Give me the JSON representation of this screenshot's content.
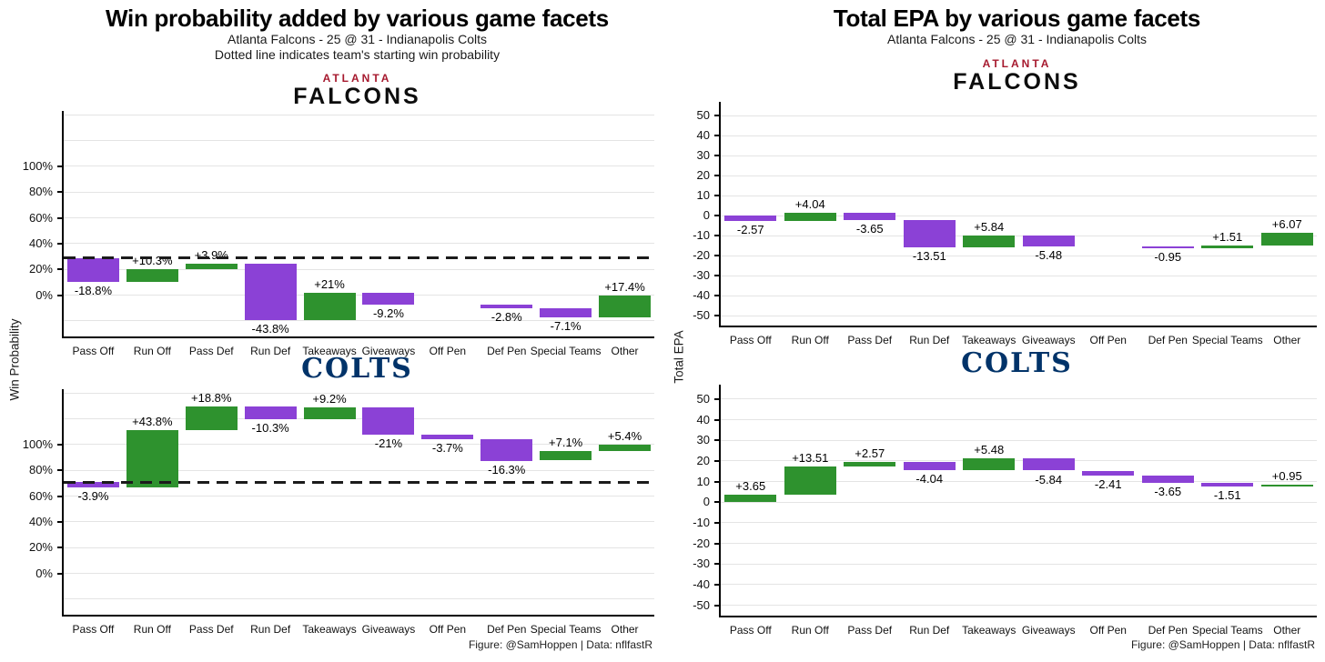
{
  "colors": {
    "positive": "#2e922e",
    "negative": "#8b41d6",
    "baseline_dash": "#1b1b1b",
    "falcons_red": "#a6192e",
    "falcons_black": "#0d0d0d",
    "colts_navy": "#013369",
    "gridline": "#e4e4e4"
  },
  "teams": {
    "falcons": {
      "city": "ATLANTA",
      "name": "FALCONS"
    },
    "colts": {
      "name": "COLTS"
    }
  },
  "left_panel": {
    "title": "Win probability added by various game facets",
    "subtitle1": "Atlanta Falcons - 25 @ 31 - Indianapolis Colts",
    "subtitle2": "Dotted line indicates team's starting win probability",
    "ylabel": "Win Probability",
    "caption": "Figure: @SamHoppen | Data: nflfastR"
  },
  "right_panel": {
    "title": "Total EPA by various game facets",
    "subtitle1": "Atlanta Falcons - 25 @ 31 - Indianapolis Colts",
    "ylabel": "Total EPA",
    "caption": "Figure: @SamHoppen | Data: nflfastR"
  },
  "chart_data": [
    {
      "id": "falcons-win-probability",
      "type": "bar",
      "subtype": "waterfall",
      "team": "Atlanta Falcons",
      "metric": "Win Probability Added",
      "categories": [
        "Pass Off",
        "Run Off",
        "Pass Def",
        "Run Def",
        "Takeaways",
        "Giveaways",
        "Off Pen",
        "Def Pen",
        "Special Teams",
        "Other"
      ],
      "values": [
        -18.8,
        10.3,
        3.9,
        -43.8,
        21,
        -9.2,
        null,
        -2.8,
        -7.1,
        17.4
      ],
      "labels": [
        "-18.8%",
        "+10.3%",
        "+3.9%",
        "-43.8%",
        "+21%",
        "-9.2%",
        "",
        "-2.8%",
        "-7.1%",
        "+17.4%"
      ],
      "start": 29,
      "baseline": 29,
      "ylim": [
        -32,
        143
      ],
      "grid_step": 20,
      "ytick_values": [
        0,
        20,
        40,
        60,
        80,
        100
      ],
      "ytick_labels": [
        "0%",
        "20%",
        "40%",
        "60%",
        "80%",
        "100%"
      ]
    },
    {
      "id": "colts-win-probability",
      "type": "bar",
      "subtype": "waterfall",
      "team": "Indianapolis Colts",
      "metric": "Win Probability Added",
      "categories": [
        "Pass Off",
        "Run Off",
        "Pass Def",
        "Run Def",
        "Takeaways",
        "Giveaways",
        "Off Pen",
        "Def Pen",
        "Special Teams",
        "Other"
      ],
      "values": [
        -3.9,
        43.8,
        18.8,
        -10.3,
        9.2,
        -21,
        -3.7,
        -16.3,
        7.1,
        5.4
      ],
      "labels": [
        "-3.9%",
        "+43.8%",
        "+18.8%",
        "-10.3%",
        "+9.2%",
        "-21%",
        "-3.7%",
        "-16.3%",
        "+7.1%",
        "+5.4%"
      ],
      "start": 71,
      "baseline": 71,
      "ylim": [
        -32,
        143
      ],
      "grid_step": 20,
      "ytick_values": [
        0,
        20,
        40,
        60,
        80,
        100
      ],
      "ytick_labels": [
        "0%",
        "20%",
        "40%",
        "60%",
        "80%",
        "100%"
      ]
    },
    {
      "id": "falcons-total-epa",
      "type": "bar",
      "subtype": "waterfall",
      "team": "Atlanta Falcons",
      "metric": "Total EPA",
      "categories": [
        "Pass Off",
        "Run Off",
        "Pass Def",
        "Run Def",
        "Takeaways",
        "Giveaways",
        "Off Pen",
        "Def Pen",
        "Special Teams",
        "Other"
      ],
      "values": [
        -2.57,
        4.04,
        -3.65,
        -13.51,
        5.84,
        -5.48,
        null,
        -0.95,
        1.51,
        6.07
      ],
      "labels": [
        "-2.57",
        "+4.04",
        "-3.65",
        "-13.51",
        "+5.84",
        "-5.48",
        "",
        "-0.95",
        "+1.51",
        "+6.07"
      ],
      "start": 0,
      "baseline": null,
      "ylim": [
        -55,
        57
      ],
      "grid_step": 10,
      "ytick_values": [
        -50,
        -40,
        -30,
        -20,
        -10,
        0,
        10,
        20,
        30,
        40,
        50
      ],
      "ytick_labels": [
        "-50",
        "-40",
        "-30",
        "-20",
        "-10",
        "0",
        "10",
        "20",
        "30",
        "40",
        "50"
      ]
    },
    {
      "id": "colts-total-epa",
      "type": "bar",
      "subtype": "waterfall",
      "team": "Indianapolis Colts",
      "metric": "Total EPA",
      "categories": [
        "Pass Off",
        "Run Off",
        "Pass Def",
        "Run Def",
        "Takeaways",
        "Giveaways",
        "Off Pen",
        "Def Pen",
        "Special Teams",
        "Other"
      ],
      "values": [
        3.65,
        13.51,
        2.57,
        -4.04,
        5.48,
        -5.84,
        -2.41,
        -3.65,
        -1.51,
        0.95
      ],
      "labels": [
        "+3.65",
        "+13.51",
        "+2.57",
        "-4.04",
        "+5.48",
        "-5.84",
        "-2.41",
        "-3.65",
        "-1.51",
        "+0.95"
      ],
      "start": 0,
      "baseline": null,
      "ylim": [
        -55,
        57
      ],
      "grid_step": 10,
      "ytick_values": [
        -50,
        -40,
        -30,
        -20,
        -10,
        0,
        10,
        20,
        30,
        40,
        50
      ],
      "ytick_labels": [
        "-50",
        "-40",
        "-30",
        "-20",
        "-10",
        "0",
        "10",
        "20",
        "30",
        "40",
        "50"
      ]
    }
  ]
}
